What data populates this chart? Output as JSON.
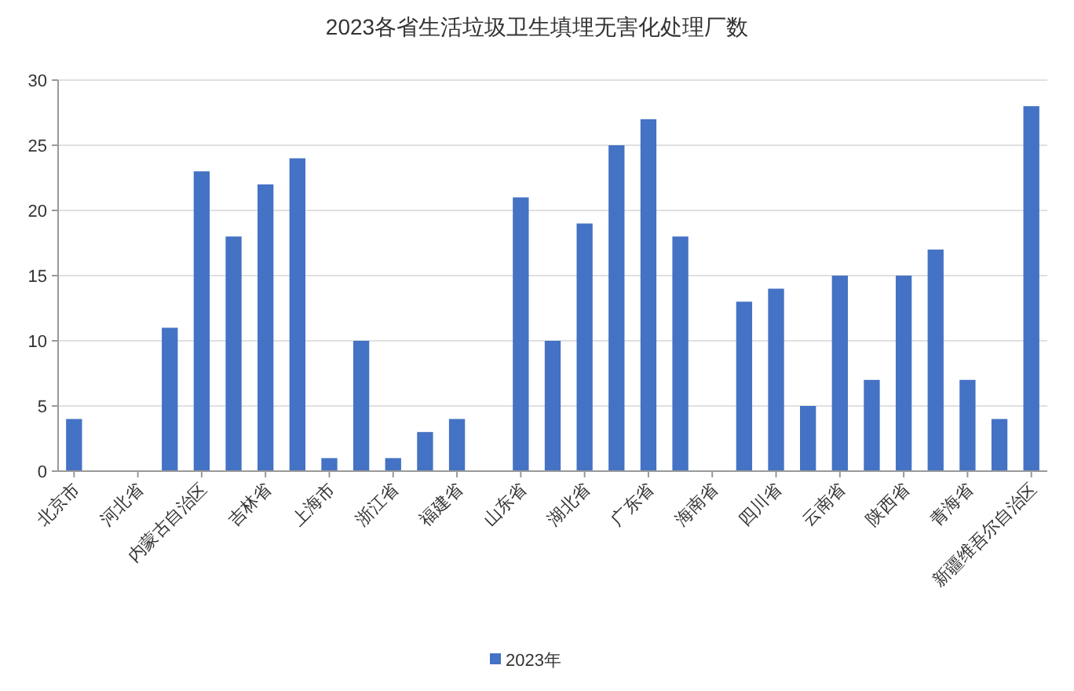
{
  "chart_data": {
    "type": "bar",
    "title": "2023各省生活垃圾卫生填埋无害化处理厂数",
    "categories": [
      "北京市",
      null,
      "河北省",
      null,
      "内蒙古自治区",
      null,
      "吉林省",
      null,
      "上海市",
      null,
      "浙江省",
      null,
      "福建省",
      null,
      "山东省",
      null,
      "湖北省",
      null,
      "广东省",
      null,
      "海南省",
      null,
      "四川省",
      null,
      "云南省",
      null,
      "陕西省",
      null,
      "青海省",
      null,
      "新疆维吾尔自治区"
    ],
    "series": [
      {
        "name": "2023年",
        "color": "#4472c4",
        "values": [
          4,
          0,
          0,
          11,
          23,
          18,
          22,
          24,
          1,
          10,
          1,
          3,
          4,
          0,
          21,
          10,
          19,
          25,
          27,
          18,
          0,
          13,
          14,
          5,
          15,
          7,
          15,
          17,
          7,
          4,
          28
        ]
      }
    ],
    "ylim": [
      0,
      30
    ],
    "yticks": [
      0,
      5,
      10,
      15,
      20,
      25,
      30
    ],
    "grid": "y",
    "legend": "bottom"
  }
}
